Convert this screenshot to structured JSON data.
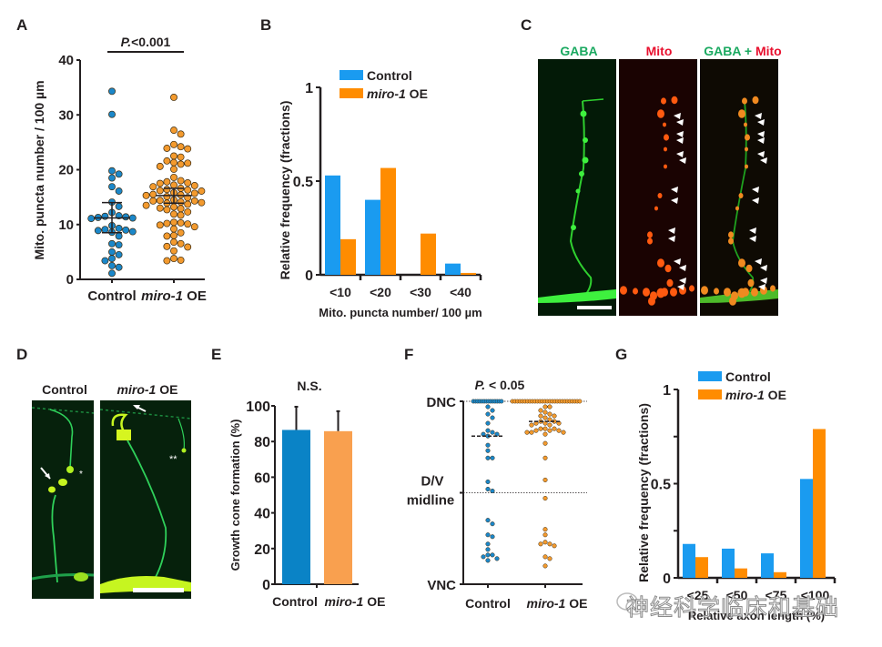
{
  "panels": {
    "A": "A",
    "B": "B",
    "C": "C",
    "D": "D",
    "E": "E",
    "F": "F",
    "G": "G"
  },
  "colors": {
    "control_dot": "#1b87c9",
    "miro_dot": "#f39a2e",
    "control_bar_bg": "#1a9bf0",
    "miro_bar_bg": "#ff8c00",
    "control_bar_E": "#0a83c6",
    "miro_bar_E": "#f9a04f",
    "gaba_label": "#1aa960",
    "mito_label": "#e8102e"
  },
  "chart_data": [
    {
      "id": "A",
      "type": "scatter",
      "title": "P.<0.001",
      "ylabel": "Mito. puncta number / 100 µm",
      "xlabel": "",
      "ylim": [
        0,
        40
      ],
      "yticks": [
        "0",
        "10",
        "20",
        "30",
        "40"
      ],
      "categories": [
        "Control",
        "miro-1 OE"
      ],
      "category_italic": [
        "",
        "miro-1"
      ],
      "series": [
        {
          "name": "Control",
          "mean": 11.2,
          "ci": [
            8.5,
            14.0
          ],
          "values": [
            34.3,
            30.1,
            19.8,
            19.2,
            18.5,
            16.9,
            16.1,
            14.1,
            13.3,
            12.2,
            11.6,
            11.5,
            11.4,
            11.3,
            11.2,
            11.1,
            9.8,
            9.3,
            9.1,
            9.0,
            8.9,
            8.7,
            8.6,
            7.9,
            6.5,
            6.3,
            5.0,
            4.5,
            3.8,
            3.4,
            2.5,
            2.2,
            1.1
          ]
        },
        {
          "name": "miro-1 OE",
          "mean": 15.3,
          "ci": [
            13.9,
            16.6
          ],
          "values": [
            33.2,
            27.2,
            26.5,
            24.6,
            24.2,
            23.9,
            23.8,
            22.5,
            22.3,
            21.6,
            21.3,
            21.2,
            21.0,
            20.6,
            20.1,
            18.6,
            18.0,
            17.8,
            17.6,
            17.5,
            17.2,
            17.1,
            16.9,
            16.6,
            16.4,
            16.3,
            16.2,
            16.1,
            15.8,
            15.7,
            15.5,
            15.4,
            15.3,
            15.1,
            14.9,
            14.5,
            14.4,
            14.3,
            14.3,
            14.1,
            14.0,
            13.9,
            13.7,
            13.5,
            13.2,
            13.0,
            12.9,
            12.7,
            12.3,
            11.9,
            11.7,
            10.4,
            10.3,
            10.2,
            10.1,
            9.9,
            9.6,
            9.2,
            8.5,
            8.0,
            7.9,
            6.8,
            6.5,
            6.0,
            5.9,
            5.2,
            3.8,
            3.5,
            3.4
          ]
        }
      ]
    },
    {
      "id": "B",
      "type": "bar",
      "title": "",
      "ylabel": "Relative frequency (fractions)",
      "xlabel": "Mito. puncta number/ 100 µm",
      "ylim": [
        0,
        1
      ],
      "yticks": [
        "0",
        "0.5",
        "1"
      ],
      "categories": [
        "<10",
        "<20",
        "<30",
        "<40"
      ],
      "legend": "top-right",
      "series": [
        {
          "name": "Control",
          "values": [
            0.53,
            0.4,
            0.0,
            0.06
          ]
        },
        {
          "name": "miro-1 OE",
          "values": [
            0.19,
            0.57,
            0.22,
            0.01
          ]
        }
      ]
    },
    {
      "id": "E",
      "type": "bar",
      "title": "N.S.",
      "ylabel": "Growth cone formation (%)",
      "xlabel": "",
      "ylim": [
        0,
        100
      ],
      "yticks": [
        "0",
        "20",
        "40",
        "60",
        "80",
        "100"
      ],
      "categories": [
        "Control",
        "miro-1 OE"
      ],
      "series": [
        {
          "name": "Growth cone formation",
          "values": [
            86.5,
            85.8
          ],
          "error_upper": [
            99.5,
            97.0
          ]
        }
      ]
    },
    {
      "id": "F",
      "type": "scatter",
      "title": "P. < 0.05",
      "ylabel": "",
      "xlabel": "",
      "ylim": [
        0,
        100
      ],
      "yticks": [
        "VNC",
        "D/V midline",
        "DNC"
      ],
      "ytick_values": [
        0,
        50,
        100
      ],
      "categories": [
        "Control",
        "miro-1 OE"
      ],
      "series": [
        {
          "name": "Control",
          "median": 81,
          "dnc_count": 14,
          "values": [
            97,
            95,
            93,
            91,
            88,
            84,
            83,
            82,
            82,
            81,
            76,
            73,
            69,
            69,
            56,
            52,
            51,
            35,
            33,
            27,
            26,
            22,
            19,
            16,
            16,
            15,
            14,
            13
          ]
        },
        {
          "name": "miro-1 OE",
          "median": 89,
          "dnc_count": 28,
          "values": [
            97,
            97,
            95,
            94,
            93,
            92,
            92,
            91,
            90,
            89,
            89,
            88,
            88,
            88,
            87,
            87,
            85,
            85,
            85,
            84,
            84,
            84,
            83,
            83,
            83,
            82,
            77,
            69,
            57,
            47,
            30,
            27,
            23,
            22,
            22,
            21,
            15,
            14,
            10
          ]
        }
      ]
    },
    {
      "id": "G",
      "type": "bar",
      "title": "",
      "ylabel": "Relative frequency (fractions)",
      "xlabel": "Relative axon length (%)",
      "ylim": [
        0,
        1
      ],
      "yticks": [
        "0",
        "0.5",
        "1"
      ],
      "categories": [
        "<25",
        "<50",
        "<75",
        "<100"
      ],
      "legend": "top-right",
      "series": [
        {
          "name": "Control",
          "values": [
            0.18,
            0.155,
            0.13,
            0.525
          ]
        },
        {
          "name": "miro-1 OE",
          "values": [
            0.11,
            0.05,
            0.03,
            0.79
          ]
        }
      ]
    }
  ],
  "micrographs": {
    "C": {
      "labels": [
        "GABA",
        "Mito",
        "GABA + Mito"
      ],
      "merge_parts": [
        "GABA",
        " + ",
        "Mito"
      ]
    },
    "D": {
      "labels": [
        "Control",
        "miro-1 OE"
      ],
      "italic": "miro-1",
      "suffix": " OE"
    }
  },
  "watermark": "神经科学临床和基础"
}
